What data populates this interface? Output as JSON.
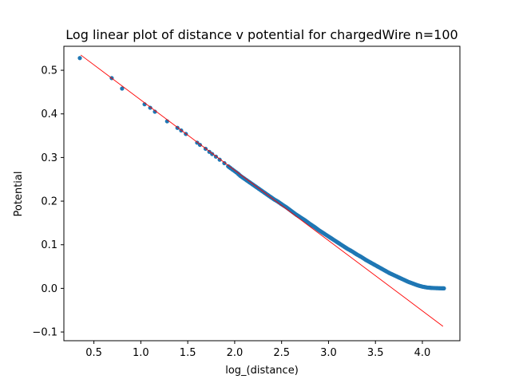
{
  "chart_data": {
    "type": "scatter",
    "title": "Log linear plot of distance v potential for chargedWire n=100",
    "xlabel": "log_(distance)",
    "ylabel": "Potential",
    "xlim": [
      0.18,
      4.4
    ],
    "ylim": [
      -0.12,
      0.555
    ],
    "xticks": [
      0.5,
      1.0,
      1.5,
      2.0,
      2.5,
      3.0,
      3.5,
      4.0
    ],
    "xtick_labels": [
      "0.5",
      "1.0",
      "1.5",
      "2.0",
      "2.5",
      "3.0",
      "3.5",
      "4.0"
    ],
    "yticks": [
      -0.1,
      0.0,
      0.1,
      0.2,
      0.3,
      0.4,
      0.5
    ],
    "ytick_labels": [
      "−0.1",
      "0.0",
      "0.1",
      "0.2",
      "0.3",
      "0.4",
      "0.5"
    ],
    "grid": false,
    "series": [
      {
        "kind": "scatter",
        "color": "#1f77b4",
        "x": [
          0.35,
          0.69,
          0.8,
          1.04,
          1.1,
          1.15,
          1.28,
          1.39,
          1.43,
          1.48,
          1.6,
          1.63,
          1.69,
          1.73,
          1.76,
          1.8,
          1.84,
          1.89,
          1.93,
          1.96,
          2.03,
          2.06,
          2.1,
          2.14,
          2.18,
          2.22,
          2.26,
          2.3,
          2.34,
          2.38,
          2.42,
          2.46,
          2.5,
          2.55,
          2.6,
          2.65,
          2.7,
          2.75,
          2.8,
          2.85,
          2.9,
          2.95,
          3.0,
          3.05,
          3.1,
          3.15,
          3.2,
          3.25,
          3.3,
          3.35,
          3.4,
          3.45,
          3.5,
          3.55,
          3.6,
          3.65,
          3.7,
          3.75,
          3.8,
          3.85,
          3.9,
          3.95,
          4.0,
          4.05,
          4.1,
          4.15,
          4.2,
          4.23
        ],
        "y": [
          0.528,
          0.482,
          0.458,
          0.422,
          0.414,
          0.405,
          0.383,
          0.368,
          0.362,
          0.354,
          0.334,
          0.329,
          0.32,
          0.313,
          0.308,
          0.302,
          0.295,
          0.287,
          0.28,
          0.275,
          0.264,
          0.258,
          0.252,
          0.246,
          0.24,
          0.234,
          0.228,
          0.222,
          0.216,
          0.21,
          0.204,
          0.199,
          0.193,
          0.186,
          0.178,
          0.17,
          0.163,
          0.156,
          0.148,
          0.141,
          0.133,
          0.126,
          0.119,
          0.112,
          0.105,
          0.098,
          0.091,
          0.085,
          0.078,
          0.072,
          0.065,
          0.059,
          0.053,
          0.047,
          0.041,
          0.035,
          0.03,
          0.025,
          0.02,
          0.015,
          0.011,
          0.007,
          0.004,
          0.002,
          0.001,
          0.0005,
          0.0002,
          0.0
        ]
      },
      {
        "kind": "line",
        "color": "#ff0000",
        "x": [
          0.36,
          4.22
        ],
        "y": [
          0.535,
          -0.087
        ]
      }
    ]
  }
}
